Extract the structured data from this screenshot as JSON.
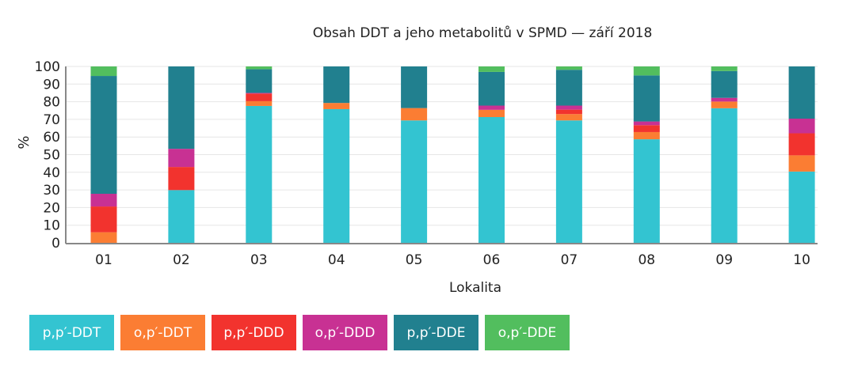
{
  "chart_data": {
    "type": "bar",
    "stacked": true,
    "title": "Obsah DDT a jeho metabolitů v SPMD — září 2018",
    "xlabel": "Lokalita",
    "ylabel": "%",
    "ylim": [
      0,
      100
    ],
    "yticks": [
      0,
      10,
      20,
      30,
      40,
      50,
      60,
      70,
      80,
      90,
      100
    ],
    "grid": true,
    "legend_position": "bottom-left",
    "categories": [
      "01",
      "02",
      "03",
      "04",
      "05",
      "06",
      "07",
      "08",
      "09",
      "10"
    ],
    "series": [
      {
        "name": "p,p′-DDT",
        "color": "#33c4d1",
        "values": [
          0,
          29.9,
          77.6,
          75.8,
          69.4,
          71.3,
          69.4,
          58.7,
          76.3,
          40.4
        ]
      },
      {
        "name": "o,p′-DDT",
        "color": "#fb7d33",
        "values": [
          6.0,
          0,
          2.7,
          3.5,
          7.0,
          4.1,
          3.6,
          4.1,
          3.8,
          9.2
        ]
      },
      {
        "name": "p,p′-DDD",
        "color": "#f2332e",
        "values": [
          14.6,
          13.1,
          4.3,
          0,
          0,
          0,
          2.5,
          3.9,
          0,
          12.5
        ]
      },
      {
        "name": "o,p′-DDD",
        "color": "#c83193",
        "values": [
          7.2,
          10.3,
          0.4,
          0,
          0,
          2.4,
          2.3,
          2.1,
          2.1,
          8.3
        ]
      },
      {
        "name": "p,p′-DDE",
        "color": "#21808f",
        "values": [
          66.8,
          46.7,
          13.4,
          20.7,
          23.6,
          19.1,
          20.3,
          26.1,
          15.2,
          29.6
        ]
      },
      {
        "name": "o,p′-DDE",
        "color": "#52be5e",
        "values": [
          5.4,
          0,
          1.6,
          0,
          0,
          3.1,
          1.9,
          5.1,
          2.6,
          0
        ]
      }
    ]
  }
}
